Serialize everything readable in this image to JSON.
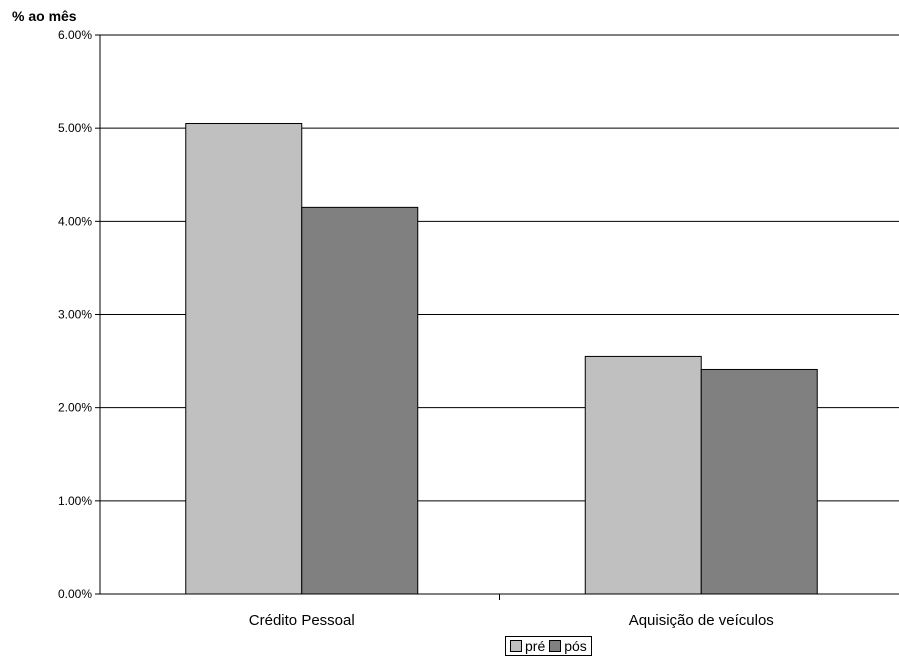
{
  "chart_data": {
    "type": "bar",
    "ylabel": "% ao mês",
    "categories": [
      "Crédito Pessoal",
      "Aquisição de veículos"
    ],
    "series": [
      {
        "name": "pré",
        "values": [
          5.05,
          2.55
        ],
        "color": "#c0c0c0"
      },
      {
        "name": "pós",
        "values": [
          4.15,
          2.41
        ],
        "color": "#808080"
      }
    ],
    "ylim": [
      0,
      6
    ],
    "yticks": [
      "0.00%",
      "1.00%",
      "2.00%",
      "3.00%",
      "4.00%",
      "5.00%",
      "6.00%"
    ],
    "grid": true,
    "legend": "bottom"
  }
}
